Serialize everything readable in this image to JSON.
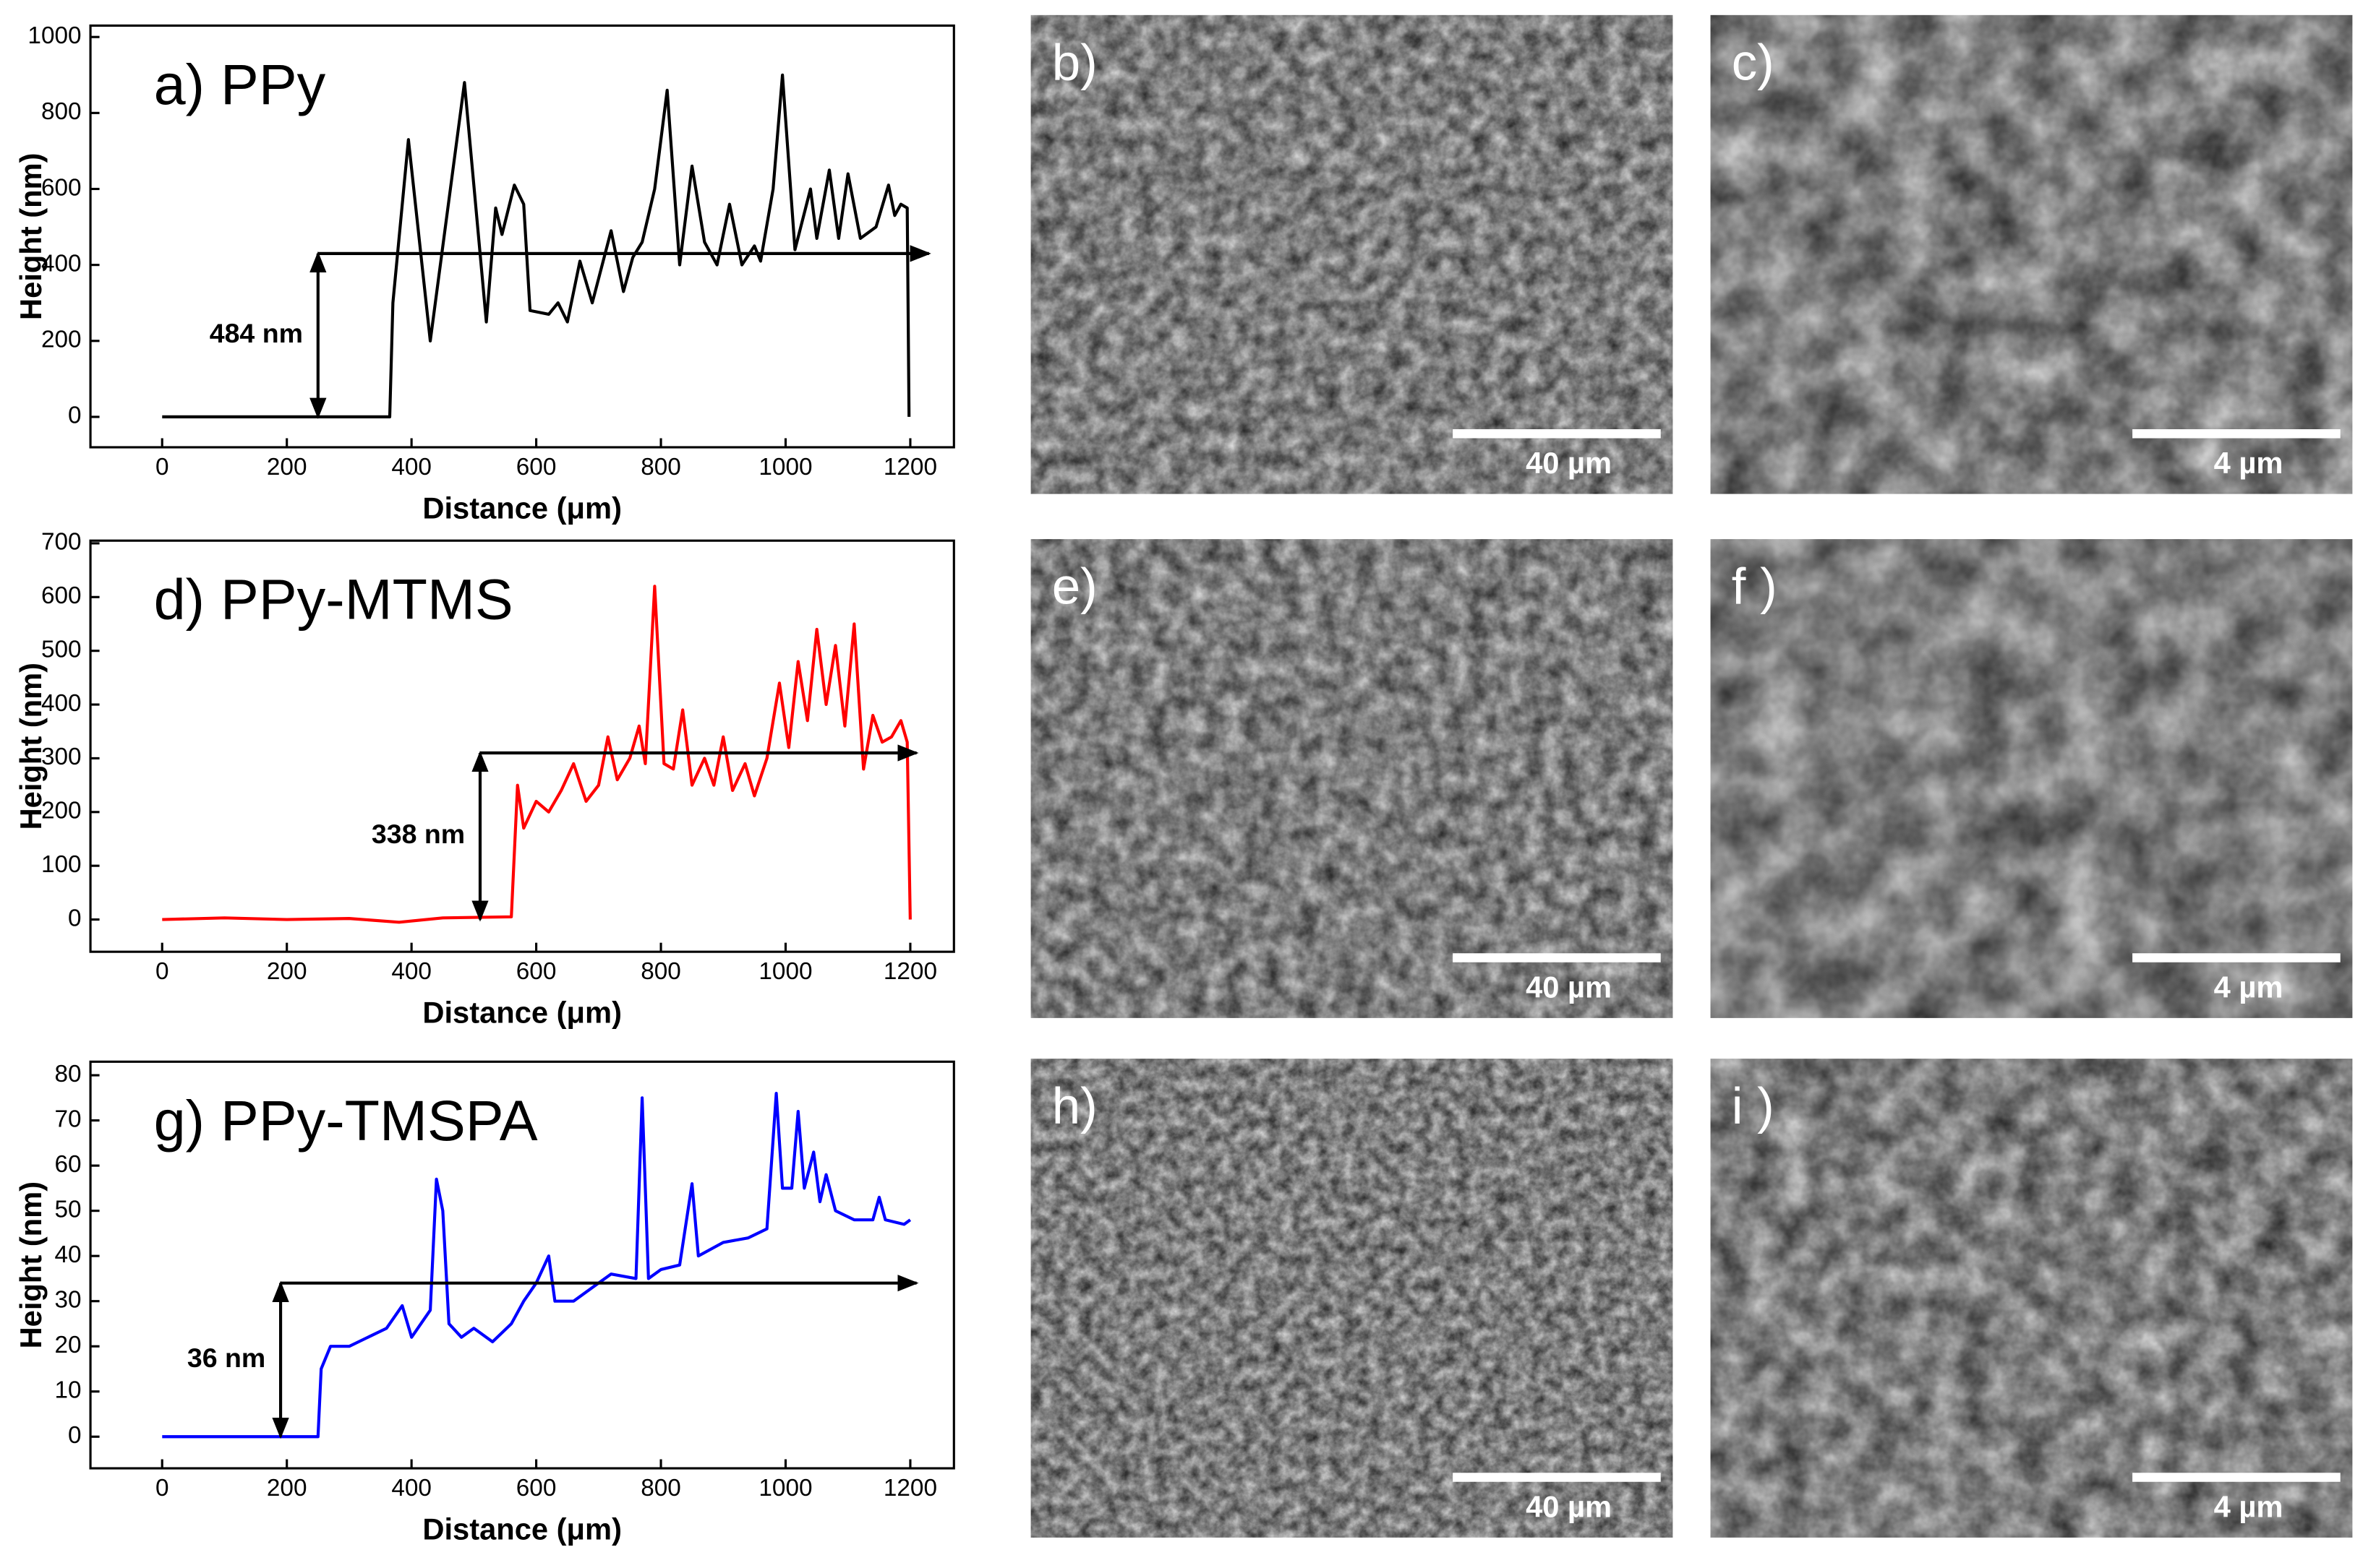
{
  "chart_data": [
    {
      "type": "line",
      "title": "a) PPy",
      "x_label": "Distance (μm)",
      "y_label": "Height (nm)",
      "color": "#000000",
      "xlim": [
        -115,
        1270
      ],
      "ylim": [
        -80,
        1030
      ],
      "xticks": [
        0,
        200,
        400,
        600,
        800,
        1000,
        1200
      ],
      "yticks": [
        0,
        200,
        400,
        600,
        800,
        1000
      ],
      "x": [
        0,
        100,
        200,
        300,
        365,
        370,
        395,
        430,
        485,
        520,
        535,
        545,
        565,
        580,
        590,
        620,
        635,
        650,
        670,
        690,
        720,
        740,
        755,
        770,
        790,
        810,
        830,
        850,
        870,
        890,
        910,
        930,
        950,
        960,
        980,
        995,
        1015,
        1040,
        1050,
        1070,
        1085,
        1100,
        1120,
        1145,
        1165,
        1175,
        1185,
        1195,
        1198
      ],
      "values": [
        0,
        0,
        0,
        0,
        0,
        300,
        730,
        200,
        880,
        250,
        550,
        480,
        610,
        560,
        280,
        270,
        300,
        250,
        410,
        300,
        490,
        330,
        420,
        460,
        600,
        860,
        400,
        660,
        460,
        400,
        560,
        400,
        450,
        410,
        600,
        900,
        440,
        600,
        470,
        650,
        470,
        640,
        470,
        500,
        610,
        530,
        560,
        550,
        0
      ],
      "annotation": {
        "text": "484 nm",
        "x": 250,
        "level": 430,
        "x_end": 1230
      }
    },
    {
      "type": "line",
      "title": "d) PPy-MTMS",
      "x_label": "Distance (μm)",
      "y_label": "Height (nm)",
      "color": "#ff0000",
      "xlim": [
        -115,
        1270
      ],
      "ylim": [
        -60,
        705
      ],
      "xticks": [
        0,
        200,
        400,
        600,
        800,
        1000,
        1200
      ],
      "yticks": [
        0,
        100,
        200,
        300,
        400,
        500,
        600,
        700
      ],
      "x": [
        0,
        100,
        200,
        300,
        380,
        450,
        560,
        570,
        580,
        600,
        620,
        640,
        660,
        680,
        700,
        715,
        730,
        750,
        765,
        775,
        790,
        805,
        820,
        835,
        850,
        870,
        885,
        900,
        915,
        935,
        950,
        970,
        990,
        1005,
        1020,
        1035,
        1050,
        1065,
        1080,
        1095,
        1110,
        1125,
        1140,
        1155,
        1170,
        1185,
        1195,
        1200
      ],
      "values": [
        0,
        3,
        0,
        2,
        -5,
        3,
        5,
        250,
        170,
        220,
        200,
        240,
        290,
        220,
        250,
        340,
        260,
        300,
        360,
        290,
        620,
        290,
        280,
        390,
        250,
        300,
        250,
        340,
        240,
        290,
        230,
        300,
        440,
        320,
        480,
        370,
        540,
        400,
        510,
        360,
        550,
        280,
        380,
        330,
        340,
        370,
        330,
        0
      ],
      "annotation": {
        "text": "338 nm",
        "x": 510,
        "level": 310,
        "x_end": 1210
      }
    },
    {
      "type": "line",
      "title": "g) PPy-TMSPA",
      "x_label": "Distance (μm)",
      "y_label": "Height (nm)",
      "color": "#0000ff",
      "xlim": [
        -115,
        1270
      ],
      "ylim": [
        -7,
        83
      ],
      "xticks": [
        0,
        200,
        400,
        600,
        800,
        1000,
        1200
      ],
      "yticks": [
        0,
        10,
        20,
        30,
        40,
        50,
        60,
        70,
        80
      ],
      "x": [
        0,
        100,
        200,
        250,
        255,
        270,
        300,
        330,
        360,
        385,
        400,
        430,
        440,
        450,
        460,
        480,
        500,
        530,
        560,
        580,
        600,
        620,
        630,
        660,
        690,
        720,
        760,
        770,
        780,
        800,
        830,
        850,
        860,
        900,
        940,
        970,
        985,
        995,
        1010,
        1020,
        1030,
        1045,
        1055,
        1065,
        1080,
        1110,
        1140,
        1150,
        1160,
        1190,
        1200
      ],
      "values": [
        0,
        0,
        0,
        0,
        15,
        20,
        20,
        22,
        24,
        29,
        22,
        28,
        57,
        50,
        25,
        22,
        24,
        21,
        25,
        30,
        34,
        40,
        30,
        30,
        33,
        36,
        35,
        75,
        35,
        37,
        38,
        56,
        40,
        43,
        44,
        46,
        76,
        55,
        55,
        72,
        55,
        63,
        52,
        58,
        50,
        48,
        48,
        53,
        48,
        47,
        48
      ],
      "annotation": {
        "text": "36 nm",
        "x": 190,
        "level": 34,
        "x_end": 1210
      }
    }
  ],
  "images": [
    {
      "label": "b)",
      "scale_bar": "40 µm"
    },
    {
      "label": "c)",
      "scale_bar": "4 µm"
    },
    {
      "label": "e)",
      "scale_bar": "40 µm"
    },
    {
      "label": "f )",
      "scale_bar": "4 µm"
    },
    {
      "label": "h)",
      "scale_bar": "40 µm"
    },
    {
      "label": "i )",
      "scale_bar": "4 µm"
    }
  ]
}
